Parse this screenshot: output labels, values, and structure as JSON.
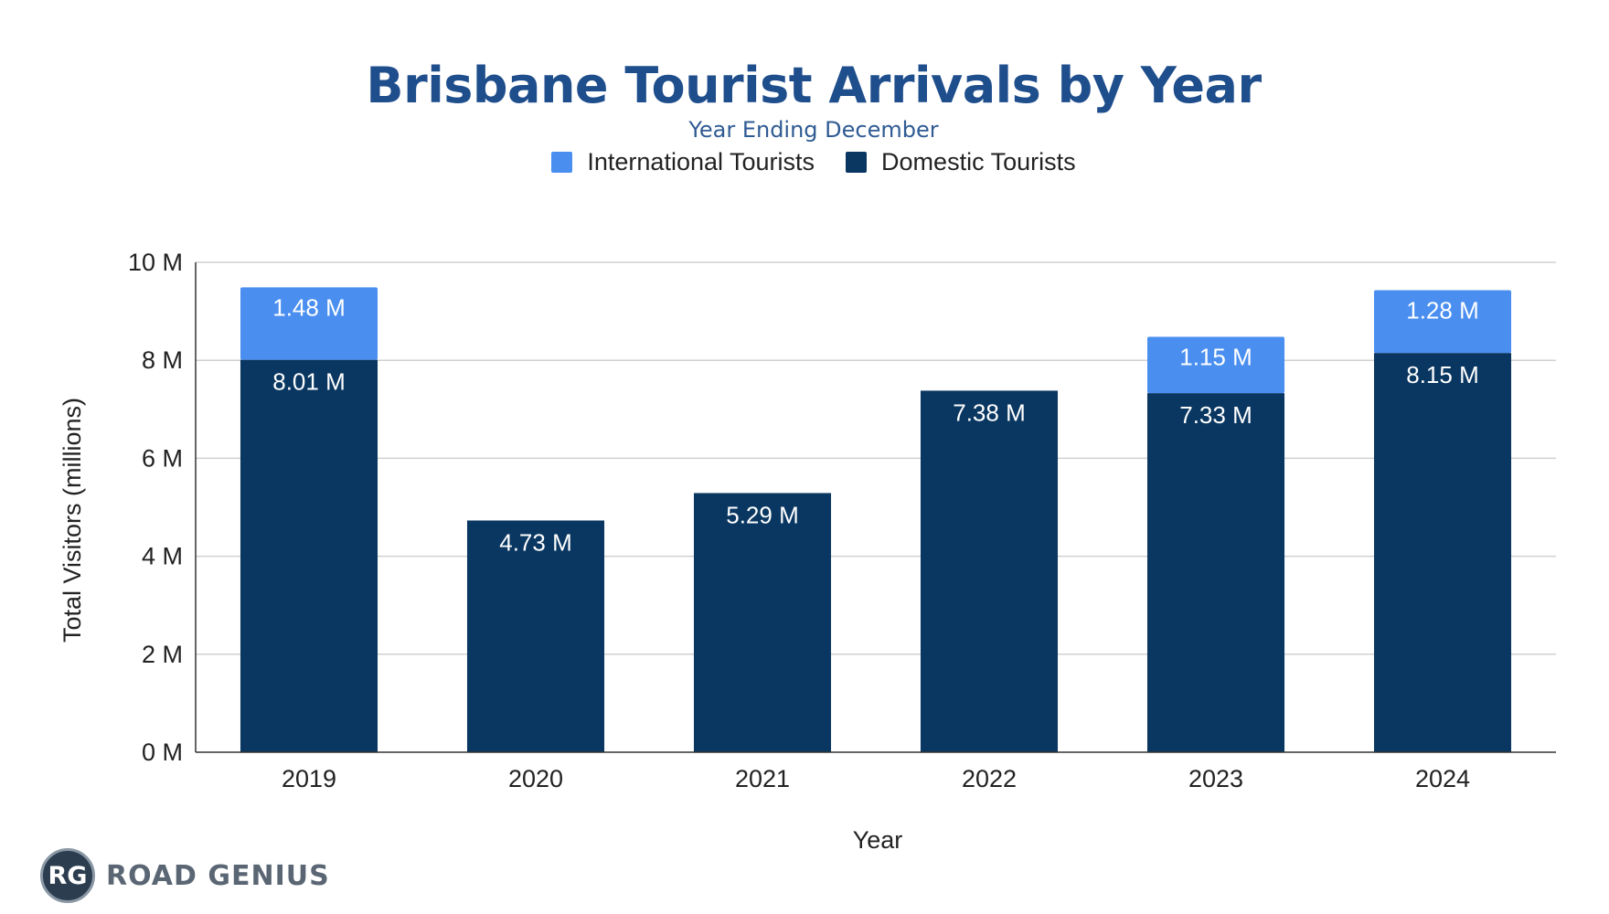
{
  "chart_data": {
    "type": "bar",
    "stacked": true,
    "title": "Brisbane Tourist Arrivals by Year",
    "subtitle": "Year Ending December",
    "xlabel": "Year",
    "ylabel": "Total Visitors (millions)",
    "categories": [
      "2019",
      "2020",
      "2021",
      "2022",
      "2023",
      "2024"
    ],
    "series": [
      {
        "name": "Domestic Tourists",
        "color": "#0a3761",
        "values": [
          8.01,
          4.73,
          5.29,
          7.38,
          7.33,
          8.15
        ],
        "labels": [
          "8.01 M",
          "4.73 M",
          "5.29 M",
          "7.38 M",
          "7.33 M",
          "8.15 M"
        ]
      },
      {
        "name": "International Tourists",
        "color": "#4a8ff0",
        "values": [
          1.48,
          null,
          null,
          null,
          1.15,
          1.28
        ],
        "labels": [
          "1.48 M",
          null,
          null,
          null,
          "1.15 M",
          "1.28 M"
        ]
      }
    ],
    "ylim": [
      0,
      10
    ],
    "yticks": [
      0,
      2,
      4,
      6,
      8,
      10
    ],
    "ytick_labels": [
      "0 M",
      "2 M",
      "4 M",
      "6 M",
      "8 M",
      "10 M"
    ],
    "grid": true,
    "legend": "top-center"
  },
  "legend": {
    "international": "International Tourists",
    "domestic": "Domestic Tourists",
    "international_color": "#4a8ff0",
    "domestic_color": "#0a3761"
  },
  "logo": {
    "badge": "RG",
    "text": "ROAD GENIUS"
  }
}
